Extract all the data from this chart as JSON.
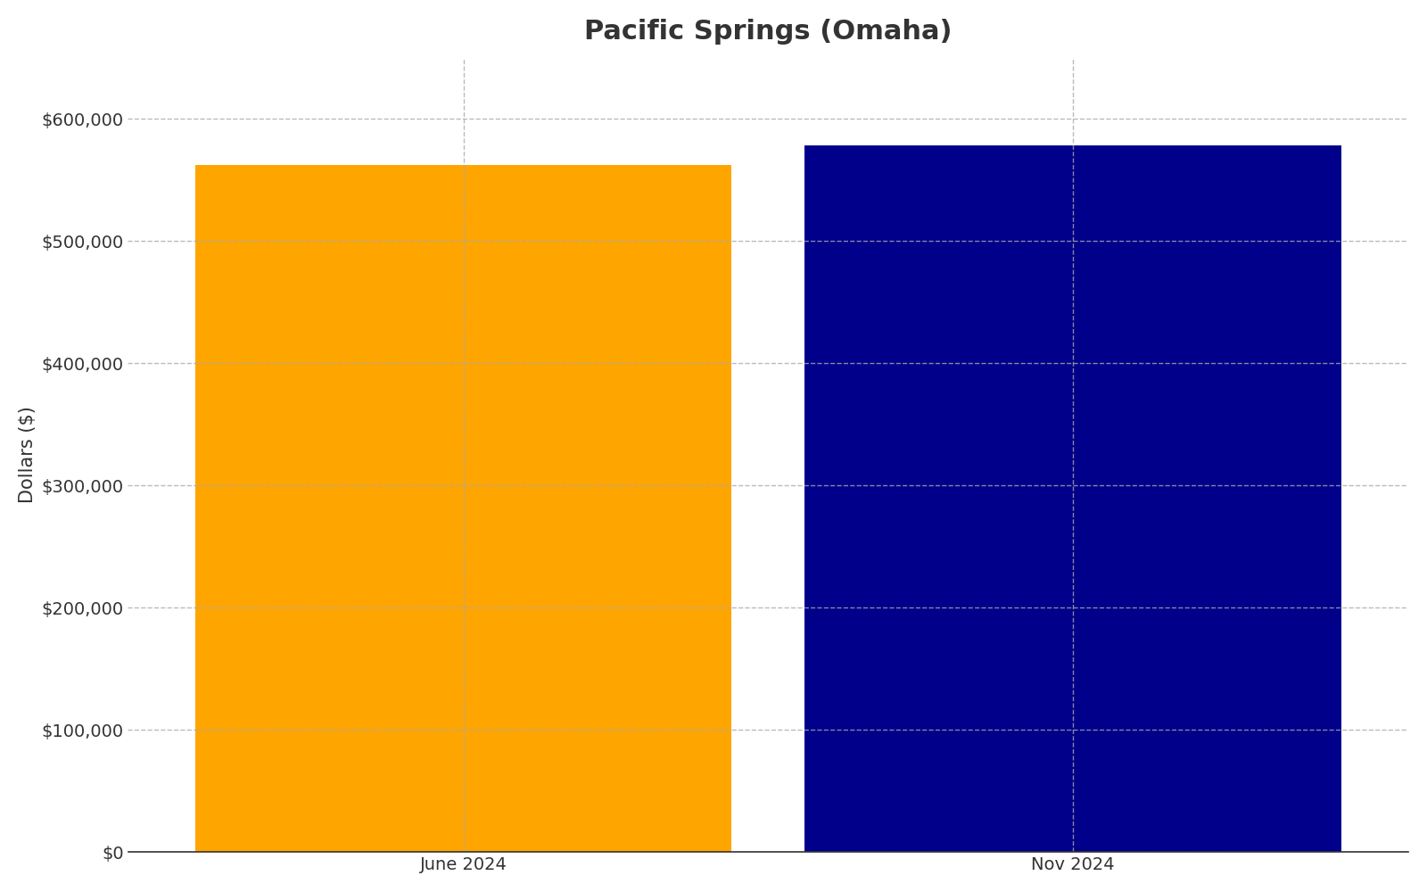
{
  "title": "Pacific Springs (Omaha)",
  "categories": [
    "June 2024",
    "Nov 2024"
  ],
  "values": [
    562000,
    578000
  ],
  "bar_colors": [
    "#FFA500",
    "#00008B"
  ],
  "ylabel": "Dollars ($)",
  "ylim": [
    0,
    650000
  ],
  "yticks": [
    0,
    100000,
    200000,
    300000,
    400000,
    500000,
    600000
  ],
  "ytick_labels": [
    "$0",
    "$100,000",
    "$200,000",
    "$300,000",
    "$400,000",
    "$500,000",
    "$600,000"
  ],
  "background_color": "#ffffff",
  "title_fontsize": 22,
  "axis_label_fontsize": 15,
  "tick_fontsize": 14,
  "grid_color": "#aaaaaa",
  "grid_linestyle": "--",
  "grid_alpha": 0.8,
  "bar_width": 0.88
}
